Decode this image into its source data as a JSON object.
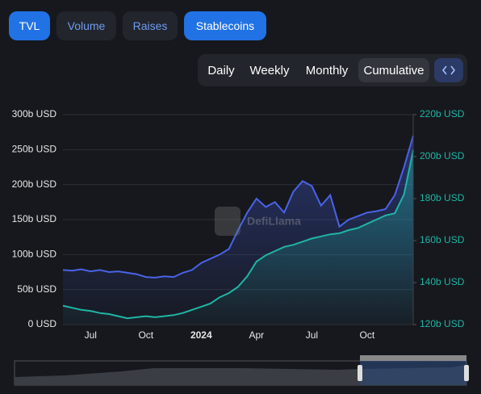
{
  "ui": {
    "tabs": [
      "TVL",
      "Volume",
      "Raises",
      "Stablecoins"
    ],
    "periods": [
      "Daily",
      "Weekly",
      "Monthly",
      "Cumulative"
    ]
  },
  "chart_data": {
    "type": "line",
    "watermark": "DefiLlama",
    "categories": [
      null,
      null,
      null,
      "Jul",
      null,
      null,
      null,
      null,
      null,
      "Oct",
      null,
      null,
      null,
      null,
      null,
      "2024",
      null,
      null,
      null,
      null,
      null,
      "Apr",
      null,
      null,
      null,
      null,
      null,
      "Jul",
      null,
      null,
      null,
      null,
      null,
      "Oct",
      null,
      null,
      null,
      null,
      null
    ],
    "series": [
      {
        "name": "TVL",
        "color": "#4a63e8",
        "values": [
          78,
          77,
          79,
          76,
          78,
          75,
          76,
          74,
          72,
          68,
          67,
          69,
          68,
          74,
          78,
          88,
          94,
          100,
          108,
          135,
          160,
          180,
          168,
          175,
          160,
          190,
          205,
          198,
          170,
          185,
          140,
          150,
          155,
          160,
          162,
          165,
          185,
          225,
          270
        ]
      },
      {
        "name": "Stablecoins",
        "color": "#1fb5a5",
        "axis": "y2",
        "values": [
          129,
          128,
          127,
          126.5,
          125.5,
          125,
          124,
          123,
          123.5,
          124,
          123.5,
          124,
          124.5,
          125.5,
          127,
          128.5,
          130,
          133,
          135,
          138,
          143,
          150,
          153,
          155,
          157,
          158,
          159.5,
          161,
          162,
          163,
          163.5,
          165,
          166,
          168,
          170,
          172,
          173,
          182,
          203
        ]
      }
    ],
    "ylim": [
      0,
      300
    ],
    "yticks": [
      {
        "value": 0,
        "label": "0 USD"
      },
      {
        "value": 50,
        "label": "50b USD"
      },
      {
        "value": 100,
        "label": "100b USD"
      },
      {
        "value": 150,
        "label": "150b USD"
      },
      {
        "value": 200,
        "label": "200b USD"
      },
      {
        "value": 250,
        "label": "250b USD"
      },
      {
        "value": 300,
        "label": "300b USD"
      }
    ],
    "y2lim": [
      120,
      220
    ],
    "y2ticks": [
      {
        "value": 120,
        "label": "120b USD"
      },
      {
        "value": 140,
        "label": "140b USD"
      },
      {
        "value": 160,
        "label": "160b USD"
      },
      {
        "value": 180,
        "label": "180b USD"
      },
      {
        "value": 200,
        "label": "200b USD"
      },
      {
        "value": 220,
        "label": "220b USD"
      }
    ],
    "grid": true
  }
}
